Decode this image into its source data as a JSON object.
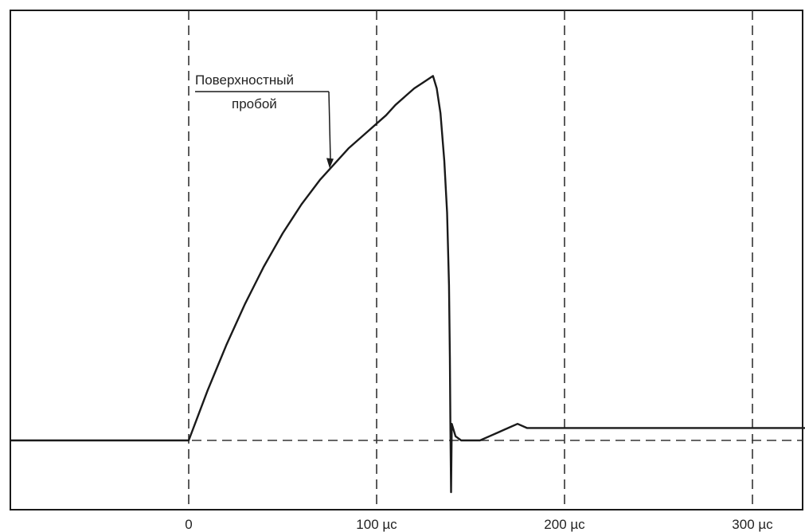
{
  "chart_data": {
    "type": "line",
    "title": "",
    "xlabel": "",
    "ylabel": "",
    "xlim": [
      -95,
      330
    ],
    "ylim": [
      -25,
      210
    ],
    "grid": {
      "vertical_dashed_at": [
        0,
        100,
        200,
        300
      ],
      "horizontal_dashed_at": [
        0
      ]
    },
    "xticks": [
      {
        "value": 0,
        "label": "0"
      },
      {
        "value": 100,
        "label": "100 µс"
      },
      {
        "value": 200,
        "label": "200 µс"
      },
      {
        "value": 300,
        "label": "300 µс"
      }
    ],
    "series": [
      {
        "color": "#1a1a1a",
        "points": [
          [
            -95,
            0
          ],
          [
            0,
            0
          ],
          [
            5,
            12
          ],
          [
            10,
            24
          ],
          [
            15,
            35
          ],
          [
            20,
            46
          ],
          [
            25,
            56
          ],
          [
            30,
            66
          ],
          [
            35,
            75
          ],
          [
            40,
            84
          ],
          [
            45,
            92
          ],
          [
            50,
            100
          ],
          [
            55,
            107
          ],
          [
            60,
            114
          ],
          [
            65,
            120
          ],
          [
            70,
            126
          ],
          [
            75,
            131
          ],
          [
            80,
            136
          ],
          [
            85,
            141
          ],
          [
            90,
            145
          ],
          [
            95,
            149
          ],
          [
            100,
            153
          ],
          [
            105,
            157
          ],
          [
            110,
            162
          ],
          [
            115,
            166
          ],
          [
            120,
            170
          ],
          [
            125,
            173
          ],
          [
            130,
            176
          ],
          [
            132,
            170
          ],
          [
            134,
            158
          ],
          [
            136,
            135
          ],
          [
            137.5,
            110
          ],
          [
            138.5,
            75
          ],
          [
            139,
            40
          ],
          [
            139.3,
            5
          ],
          [
            139.6,
            -25
          ],
          [
            140,
            8
          ],
          [
            142,
            2
          ],
          [
            145,
            0
          ],
          [
            150,
            0
          ],
          [
            155,
            0
          ],
          [
            160,
            2
          ],
          [
            165,
            4
          ],
          [
            170,
            6
          ],
          [
            175,
            8
          ],
          [
            180,
            6
          ],
          [
            200,
            6
          ],
          [
            240,
            6
          ],
          [
            280,
            6
          ],
          [
            330,
            6
          ]
        ]
      }
    ],
    "annotations": [
      {
        "lines": [
          "Поверхностный",
          "пробой"
        ],
        "x": 75,
        "y": 131
      }
    ]
  }
}
